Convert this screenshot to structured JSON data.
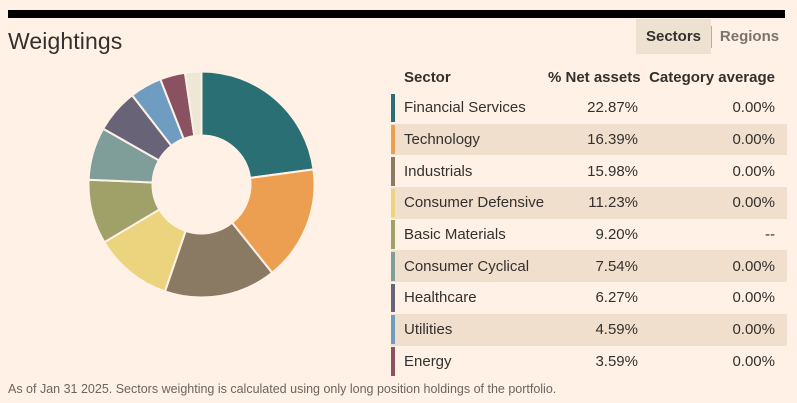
{
  "page": {
    "background_color": "#fff1e5",
    "top_bar_color": "#000000"
  },
  "header": {
    "title": "Weightings",
    "tabs": [
      {
        "label": "Sectors",
        "active": true
      },
      {
        "label": "Regions",
        "active": false
      }
    ]
  },
  "table": {
    "columns": [
      "Sector",
      "% Net assets",
      "Category average"
    ],
    "rows": [
      {
        "sector": "Financial Services",
        "net_assets": "22.87%",
        "category_average": "0.00%",
        "color": "#2a6f74"
      },
      {
        "sector": "Technology",
        "net_assets": "16.39%",
        "category_average": "0.00%",
        "color": "#ec9f51"
      },
      {
        "sector": "Industrials",
        "net_assets": "15.98%",
        "category_average": "0.00%",
        "color": "#8a7a63"
      },
      {
        "sector": "Consumer Defensive",
        "net_assets": "11.23%",
        "category_average": "0.00%",
        "color": "#ecd47f"
      },
      {
        "sector": "Basic Materials",
        "net_assets": "9.20%",
        "category_average": "--",
        "color": "#a0a169"
      },
      {
        "sector": "Consumer Cyclical",
        "net_assets": "7.54%",
        "category_average": "0.00%",
        "color": "#7f9d99"
      },
      {
        "sector": "Healthcare",
        "net_assets": "6.27%",
        "category_average": "0.00%",
        "color": "#696378"
      },
      {
        "sector": "Utilities",
        "net_assets": "4.59%",
        "category_average": "0.00%",
        "color": "#6f9cc1"
      },
      {
        "sector": "Energy",
        "net_assets": "3.59%",
        "category_average": "0.00%",
        "color": "#8a5261"
      }
    ]
  },
  "chart_data": {
    "type": "pie",
    "donut": true,
    "title": "Weightings",
    "categories": [
      "Financial Services",
      "Technology",
      "Industrials",
      "Consumer Defensive",
      "Basic Materials",
      "Consumer Cyclical",
      "Healthcare",
      "Utilities",
      "Energy",
      ""
    ],
    "values": [
      22.87,
      16.39,
      15.98,
      11.23,
      9.2,
      7.54,
      6.27,
      4.59,
      3.59,
      2.34
    ],
    "colors": [
      "#2a6f74",
      "#ec9f51",
      "#8a7a63",
      "#ecd47f",
      "#a0a169",
      "#7f9d99",
      "#696378",
      "#6f9cc1",
      "#8a5261",
      "#eee7d5"
    ],
    "start_angle_deg": 0,
    "direction": "clockwise",
    "outer_radius_px": 113,
    "inner_radius_px": 49,
    "slice_gap_color": "#fff1e5",
    "legend_position": "table-right"
  },
  "footer": {
    "note": "As of Jan 31 2025. Sectors weighting is calculated using only long position holdings of the portfolio."
  }
}
